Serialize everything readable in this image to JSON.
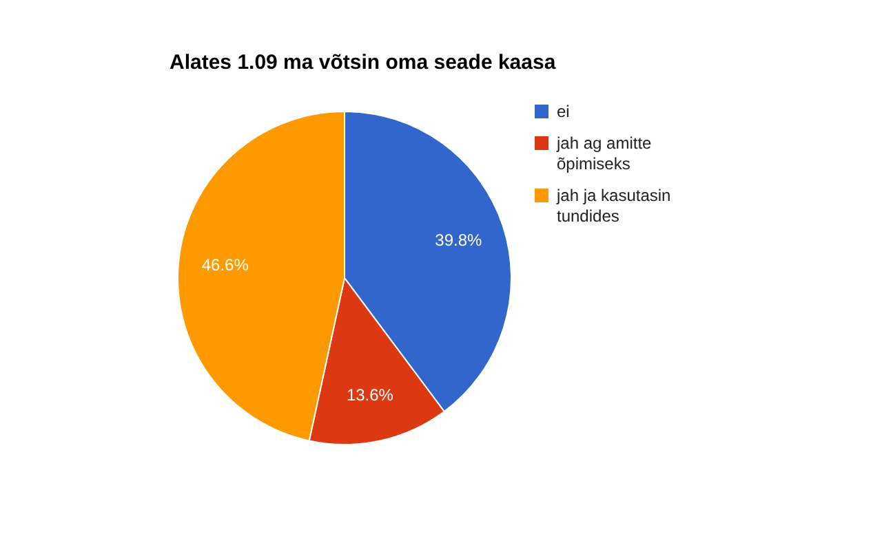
{
  "chart_data": {
    "type": "pie",
    "title": "Alates 1.09 ma võtsin oma seade kaasa",
    "categories": [
      "ei",
      "jah ag amitte õpimiseks",
      "jah ja kasutasin tundides"
    ],
    "values": [
      39.8,
      13.6,
      46.6
    ],
    "colors": [
      "#3366cc",
      "#dc3912",
      "#ff9900"
    ],
    "value_labels": [
      "39.8%",
      "13.6%",
      "46.6%"
    ],
    "legend": "right"
  }
}
